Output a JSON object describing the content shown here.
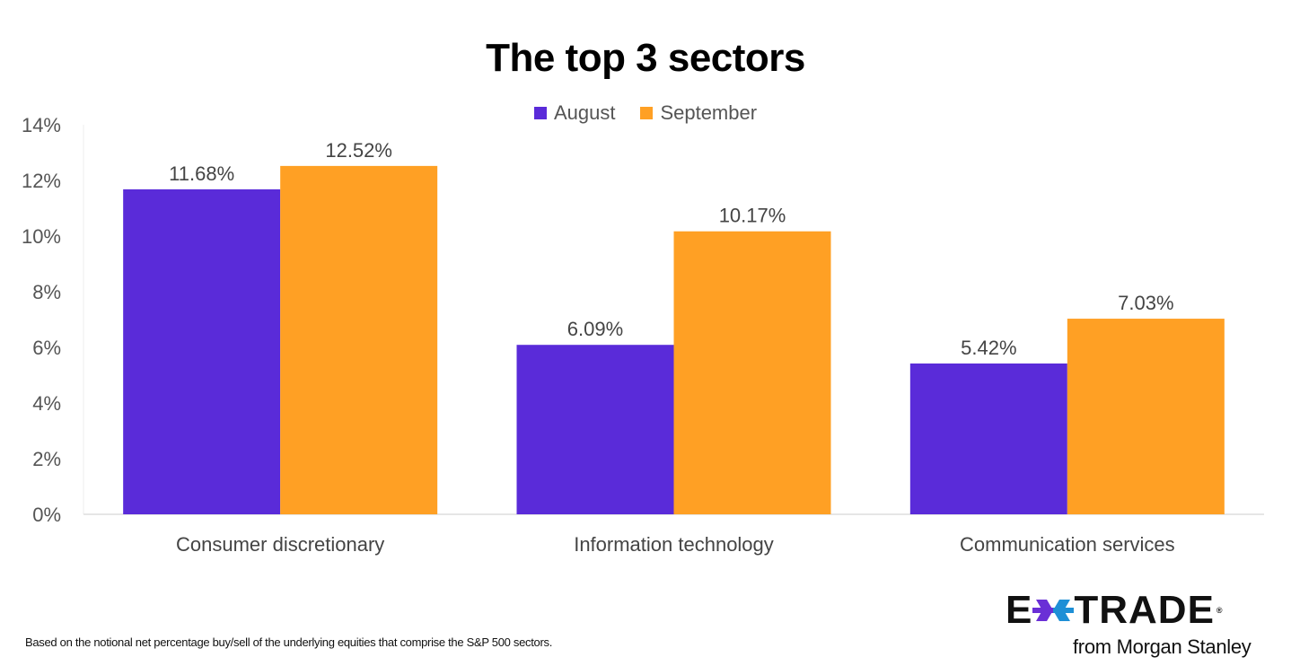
{
  "chart_data": {
    "type": "bar",
    "title": "The top 3 sectors",
    "categories": [
      "Consumer discretionary",
      "Information technology",
      "Communication services"
    ],
    "series": [
      {
        "name": "August",
        "color": "#5a2bd9",
        "values": [
          11.68,
          6.09,
          5.42
        ],
        "labels": [
          "11.68%",
          "6.09%",
          "5.42%"
        ]
      },
      {
        "name": "September",
        "color": "#ffa024",
        "values": [
          12.52,
          10.17,
          7.03
        ],
        "labels": [
          "12.52%",
          "10.17%",
          "7.03%"
        ]
      }
    ],
    "xlabel": "",
    "ylabel": "",
    "ylim": [
      0,
      14
    ],
    "yticks": [
      0,
      2,
      4,
      6,
      8,
      10,
      12,
      14
    ],
    "ytick_labels": [
      "0%",
      "2%",
      "4%",
      "6%",
      "8%",
      "10%",
      "12%",
      "14%"
    ],
    "grid": false,
    "legend_position": "top-center"
  },
  "footnote": "Based on the notional net percentage buy/sell of the underlying equities that comprise the S&P 500 sectors.",
  "logo": {
    "brand_left": "E",
    "brand_right": "TRADE",
    "registered": "®",
    "tagline": "from Morgan Stanley",
    "colors": {
      "purple": "#6a2fd6",
      "blue": "#1e8fd6"
    }
  }
}
